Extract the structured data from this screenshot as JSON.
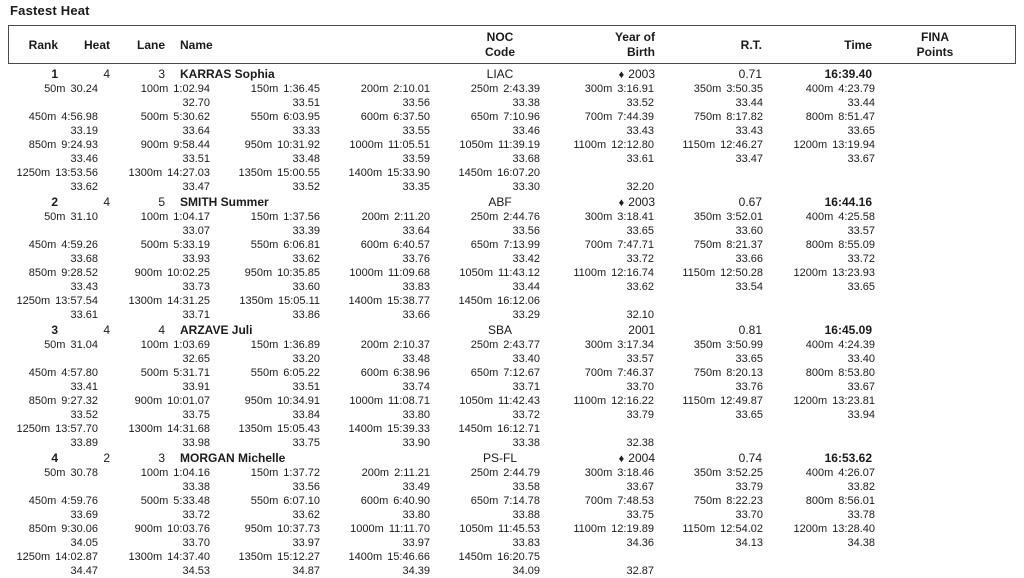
{
  "title": "Fastest Heat",
  "colors": {
    "text": "#1b1b1b",
    "border": "#4a4a4a",
    "background": "#ffffff"
  },
  "header": {
    "rank": "Rank",
    "heat": "Heat",
    "lane": "Lane",
    "name": "Name",
    "noc_line1": "NOC",
    "noc_line2": "Code",
    "yob_line1": "Year of",
    "yob_line2": "Birth",
    "rt": "R.T.",
    "time": "Time",
    "fina_line1": "FINA",
    "fina_line2": "Points"
  },
  "swimmers": [
    {
      "rank": "1",
      "heat": "4",
      "lane": "3",
      "name": "KARRAS Sophia",
      "noc": "LIAC",
      "year_marker": "♦",
      "year": "2003",
      "rt": "0.71",
      "time": "16:39.40",
      "split_rows": [
        {
          "cells": [
            [
              "50m",
              "30.24"
            ],
            [
              "100m",
              "1:02.94"
            ],
            [
              "150m",
              "1:36.45"
            ],
            [
              "200m",
              "2:10.01"
            ],
            [
              "250m",
              "2:43.39"
            ],
            [
              "300m",
              "3:16.91"
            ],
            [
              "350m",
              "3:50.35"
            ],
            [
              "400m",
              "4:23.79"
            ]
          ],
          "subs": [
            "",
            "32.70",
            "33.51",
            "33.56",
            "33.38",
            "33.52",
            "33.44",
            "33.44"
          ]
        },
        {
          "cells": [
            [
              "450m",
              "4:56.98"
            ],
            [
              "500m",
              "5:30.62"
            ],
            [
              "550m",
              "6:03.95"
            ],
            [
              "600m",
              "6:37.50"
            ],
            [
              "650m",
              "7:10.96"
            ],
            [
              "700m",
              "7:44.39"
            ],
            [
              "750m",
              "8:17.82"
            ],
            [
              "800m",
              "8:51.47"
            ]
          ],
          "subs": [
            "33.19",
            "33.64",
            "33.33",
            "33.55",
            "33.46",
            "33.43",
            "33.43",
            "33.65"
          ]
        },
        {
          "cells": [
            [
              "850m",
              "9:24.93"
            ],
            [
              "900m",
              "9:58.44"
            ],
            [
              "950m",
              "10:31.92"
            ],
            [
              "1000m",
              "11:05.51"
            ],
            [
              "1050m",
              "11:39.19"
            ],
            [
              "1100m",
              "12:12.80"
            ],
            [
              "1150m",
              "12:46.27"
            ],
            [
              "1200m",
              "13:19.94"
            ]
          ],
          "subs": [
            "33.46",
            "33.51",
            "33.48",
            "33.59",
            "33.68",
            "33.61",
            "33.47",
            "33.67"
          ]
        },
        {
          "cells": [
            [
              "1250m",
              "13:53.56"
            ],
            [
              "1300m",
              "14:27.03"
            ],
            [
              "1350m",
              "15:00.55"
            ],
            [
              "1400m",
              "15:33.90"
            ],
            [
              "1450m",
              "16:07.20"
            ],
            null,
            null,
            null
          ],
          "subs": [
            "33.62",
            "33.47",
            "33.52",
            "33.35",
            "33.30",
            "32.20",
            "",
            ""
          ]
        }
      ]
    },
    {
      "rank": "2",
      "heat": "4",
      "lane": "5",
      "name": "SMITH Summer",
      "noc": "ABF",
      "year_marker": "♦",
      "year": "2003",
      "rt": "0.67",
      "time": "16:44.16",
      "split_rows": [
        {
          "cells": [
            [
              "50m",
              "31.10"
            ],
            [
              "100m",
              "1:04.17"
            ],
            [
              "150m",
              "1:37.56"
            ],
            [
              "200m",
              "2:11.20"
            ],
            [
              "250m",
              "2:44.76"
            ],
            [
              "300m",
              "3:18.41"
            ],
            [
              "350m",
              "3:52.01"
            ],
            [
              "400m",
              "4:25.58"
            ]
          ],
          "subs": [
            "",
            "33.07",
            "33.39",
            "33.64",
            "33.56",
            "33.65",
            "33.60",
            "33.57"
          ]
        },
        {
          "cells": [
            [
              "450m",
              "4:59.26"
            ],
            [
              "500m",
              "5:33.19"
            ],
            [
              "550m",
              "6:06.81"
            ],
            [
              "600m",
              "6:40.57"
            ],
            [
              "650m",
              "7:13.99"
            ],
            [
              "700m",
              "7:47.71"
            ],
            [
              "750m",
              "8:21.37"
            ],
            [
              "800m",
              "8:55.09"
            ]
          ],
          "subs": [
            "33.68",
            "33.93",
            "33.62",
            "33.76",
            "33.42",
            "33.72",
            "33.66",
            "33.72"
          ]
        },
        {
          "cells": [
            [
              "850m",
              "9:28.52"
            ],
            [
              "900m",
              "10:02.25"
            ],
            [
              "950m",
              "10:35.85"
            ],
            [
              "1000m",
              "11:09.68"
            ],
            [
              "1050m",
              "11:43.12"
            ],
            [
              "1100m",
              "12:16.74"
            ],
            [
              "1150m",
              "12:50.28"
            ],
            [
              "1200m",
              "13:23.93"
            ]
          ],
          "subs": [
            "33.43",
            "33.73",
            "33.60",
            "33.83",
            "33.44",
            "33.62",
            "33.54",
            "33.65"
          ]
        },
        {
          "cells": [
            [
              "1250m",
              "13:57.54"
            ],
            [
              "1300m",
              "14:31.25"
            ],
            [
              "1350m",
              "15:05.11"
            ],
            [
              "1400m",
              "15:38.77"
            ],
            [
              "1450m",
              "16:12.06"
            ],
            null,
            null,
            null
          ],
          "subs": [
            "33.61",
            "33.71",
            "33.86",
            "33.66",
            "33.29",
            "32.10",
            "",
            ""
          ]
        }
      ]
    },
    {
      "rank": "3",
      "heat": "4",
      "lane": "4",
      "name": "ARZAVE Juli",
      "noc": "SBA",
      "year_marker": "",
      "year": "2001",
      "rt": "0.81",
      "time": "16:45.09",
      "split_rows": [
        {
          "cells": [
            [
              "50m",
              "31.04"
            ],
            [
              "100m",
              "1:03.69"
            ],
            [
              "150m",
              "1:36.89"
            ],
            [
              "200m",
              "2:10.37"
            ],
            [
              "250m",
              "2:43.77"
            ],
            [
              "300m",
              "3:17.34"
            ],
            [
              "350m",
              "3:50.99"
            ],
            [
              "400m",
              "4:24.39"
            ]
          ],
          "subs": [
            "",
            "32.65",
            "33.20",
            "33.48",
            "33.40",
            "33.57",
            "33.65",
            "33.40"
          ]
        },
        {
          "cells": [
            [
              "450m",
              "4:57.80"
            ],
            [
              "500m",
              "5:31.71"
            ],
            [
              "550m",
              "6:05.22"
            ],
            [
              "600m",
              "6:38.96"
            ],
            [
              "650m",
              "7:12.67"
            ],
            [
              "700m",
              "7:46.37"
            ],
            [
              "750m",
              "8:20.13"
            ],
            [
              "800m",
              "8:53.80"
            ]
          ],
          "subs": [
            "33.41",
            "33.91",
            "33.51",
            "33.74",
            "33.71",
            "33.70",
            "33.76",
            "33.67"
          ]
        },
        {
          "cells": [
            [
              "850m",
              "9:27.32"
            ],
            [
              "900m",
              "10:01.07"
            ],
            [
              "950m",
              "10:34.91"
            ],
            [
              "1000m",
              "11:08.71"
            ],
            [
              "1050m",
              "11:42.43"
            ],
            [
              "1100m",
              "12:16.22"
            ],
            [
              "1150m",
              "12:49.87"
            ],
            [
              "1200m",
              "13:23.81"
            ]
          ],
          "subs": [
            "33.52",
            "33.75",
            "33.84",
            "33.80",
            "33.72",
            "33.79",
            "33.65",
            "33.94"
          ]
        },
        {
          "cells": [
            [
              "1250m",
              "13:57.70"
            ],
            [
              "1300m",
              "14:31.68"
            ],
            [
              "1350m",
              "15:05.43"
            ],
            [
              "1400m",
              "15:39.33"
            ],
            [
              "1450m",
              "16:12.71"
            ],
            null,
            null,
            null
          ],
          "subs": [
            "33.89",
            "33.98",
            "33.75",
            "33.90",
            "33.38",
            "32.38",
            "",
            ""
          ]
        }
      ]
    },
    {
      "rank": "4",
      "heat": "2",
      "lane": "3",
      "name": "MORGAN Michelle",
      "noc": "PS-FL",
      "year_marker": "♦",
      "year": "2004",
      "rt": "0.74",
      "time": "16:53.62",
      "split_rows": [
        {
          "cells": [
            [
              "50m",
              "30.78"
            ],
            [
              "100m",
              "1:04.16"
            ],
            [
              "150m",
              "1:37.72"
            ],
            [
              "200m",
              "2:11.21"
            ],
            [
              "250m",
              "2:44.79"
            ],
            [
              "300m",
              "3:18.46"
            ],
            [
              "350m",
              "3:52.25"
            ],
            [
              "400m",
              "4:26.07"
            ]
          ],
          "subs": [
            "",
            "33.38",
            "33.56",
            "33.49",
            "33.58",
            "33.67",
            "33.79",
            "33.82"
          ]
        },
        {
          "cells": [
            [
              "450m",
              "4:59.76"
            ],
            [
              "500m",
              "5:33.48"
            ],
            [
              "550m",
              "6:07.10"
            ],
            [
              "600m",
              "6:40.90"
            ],
            [
              "650m",
              "7:14.78"
            ],
            [
              "700m",
              "7:48.53"
            ],
            [
              "750m",
              "8:22.23"
            ],
            [
              "800m",
              "8:56.01"
            ]
          ],
          "subs": [
            "33.69",
            "33.72",
            "33.62",
            "33.80",
            "33.88",
            "33.75",
            "33.70",
            "33.78"
          ]
        },
        {
          "cells": [
            [
              "850m",
              "9:30.06"
            ],
            [
              "900m",
              "10:03.76"
            ],
            [
              "950m",
              "10:37.73"
            ],
            [
              "1000m",
              "11:11.70"
            ],
            [
              "1050m",
              "11:45.53"
            ],
            [
              "1100m",
              "12:19.89"
            ],
            [
              "1150m",
              "12:54.02"
            ],
            [
              "1200m",
              "13:28.40"
            ]
          ],
          "subs": [
            "34.05",
            "33.70",
            "33.97",
            "33.97",
            "33.83",
            "34.36",
            "34.13",
            "34.38"
          ]
        },
        {
          "cells": [
            [
              "1250m",
              "14:02.87"
            ],
            [
              "1300m",
              "14:37.40"
            ],
            [
              "1350m",
              "15:12.27"
            ],
            [
              "1400m",
              "15:46.66"
            ],
            [
              "1450m",
              "16:20.75"
            ],
            null,
            null,
            null
          ],
          "subs": [
            "34.47",
            "34.53",
            "34.87",
            "34.39",
            "34.09",
            "32.87",
            "",
            ""
          ]
        }
      ]
    }
  ]
}
